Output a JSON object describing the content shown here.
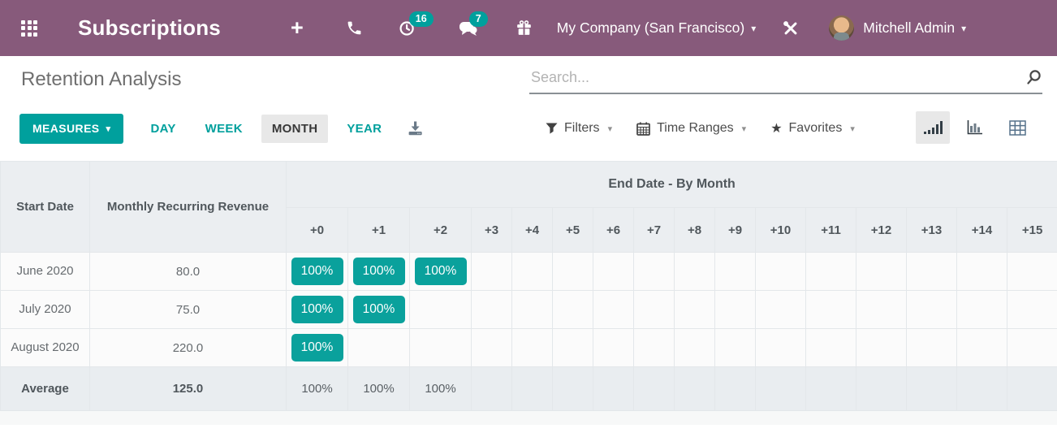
{
  "colors": {
    "brand_purple": "#875a7b",
    "accent_teal": "#00a09d",
    "badge_teal": "#0aa19c"
  },
  "topbar": {
    "app_title": "Subscriptions",
    "activities_count": "16",
    "messages_count": "7",
    "company": "My Company (San Francisco)",
    "user": "Mitchell Admin"
  },
  "control_panel": {
    "title": "Retention Analysis",
    "search_placeholder": "Search...",
    "measures_label": "MEASURES",
    "intervals": [
      {
        "label": "DAY",
        "active": false
      },
      {
        "label": "WEEK",
        "active": false
      },
      {
        "label": "MONTH",
        "active": true
      },
      {
        "label": "YEAR",
        "active": false
      }
    ],
    "filters_label": "Filters",
    "time_ranges_label": "Time Ranges",
    "favorites_label": "Favorites"
  },
  "table": {
    "col1_header": "Start Date",
    "col2_header": "Monthly Recurring Revenue",
    "group_header": "End Date - By Month",
    "period_cols": [
      "+0",
      "+1",
      "+2",
      "+3",
      "+4",
      "+5",
      "+6",
      "+7",
      "+8",
      "+9",
      "+10",
      "+11",
      "+12",
      "+13",
      "+14",
      "+15"
    ],
    "rows": [
      {
        "label": "June 2020",
        "value": "80.0",
        "cells": [
          "100%",
          "100%",
          "100%",
          "",
          "",
          "",
          "",
          "",
          "",
          "",
          "",
          "",
          "",
          "",
          "",
          ""
        ]
      },
      {
        "label": "July 2020",
        "value": "75.0",
        "cells": [
          "100%",
          "100%",
          "",
          "",
          "",
          "",
          "",
          "",
          "",
          "",
          "",
          "",
          "",
          "",
          "",
          ""
        ]
      },
      {
        "label": "August 2020",
        "value": "220.0",
        "cells": [
          "100%",
          "",
          "",
          "",
          "",
          "",
          "",
          "",
          "",
          "",
          "",
          "",
          "",
          "",
          "",
          ""
        ]
      }
    ],
    "footer": {
      "label": "Average",
      "value": "125.0",
      "cells": [
        "100%",
        "100%",
        "100%",
        "",
        "",
        "",
        "",
        "",
        "",
        "",
        "",
        "",
        "",
        "",
        "",
        ""
      ]
    }
  }
}
